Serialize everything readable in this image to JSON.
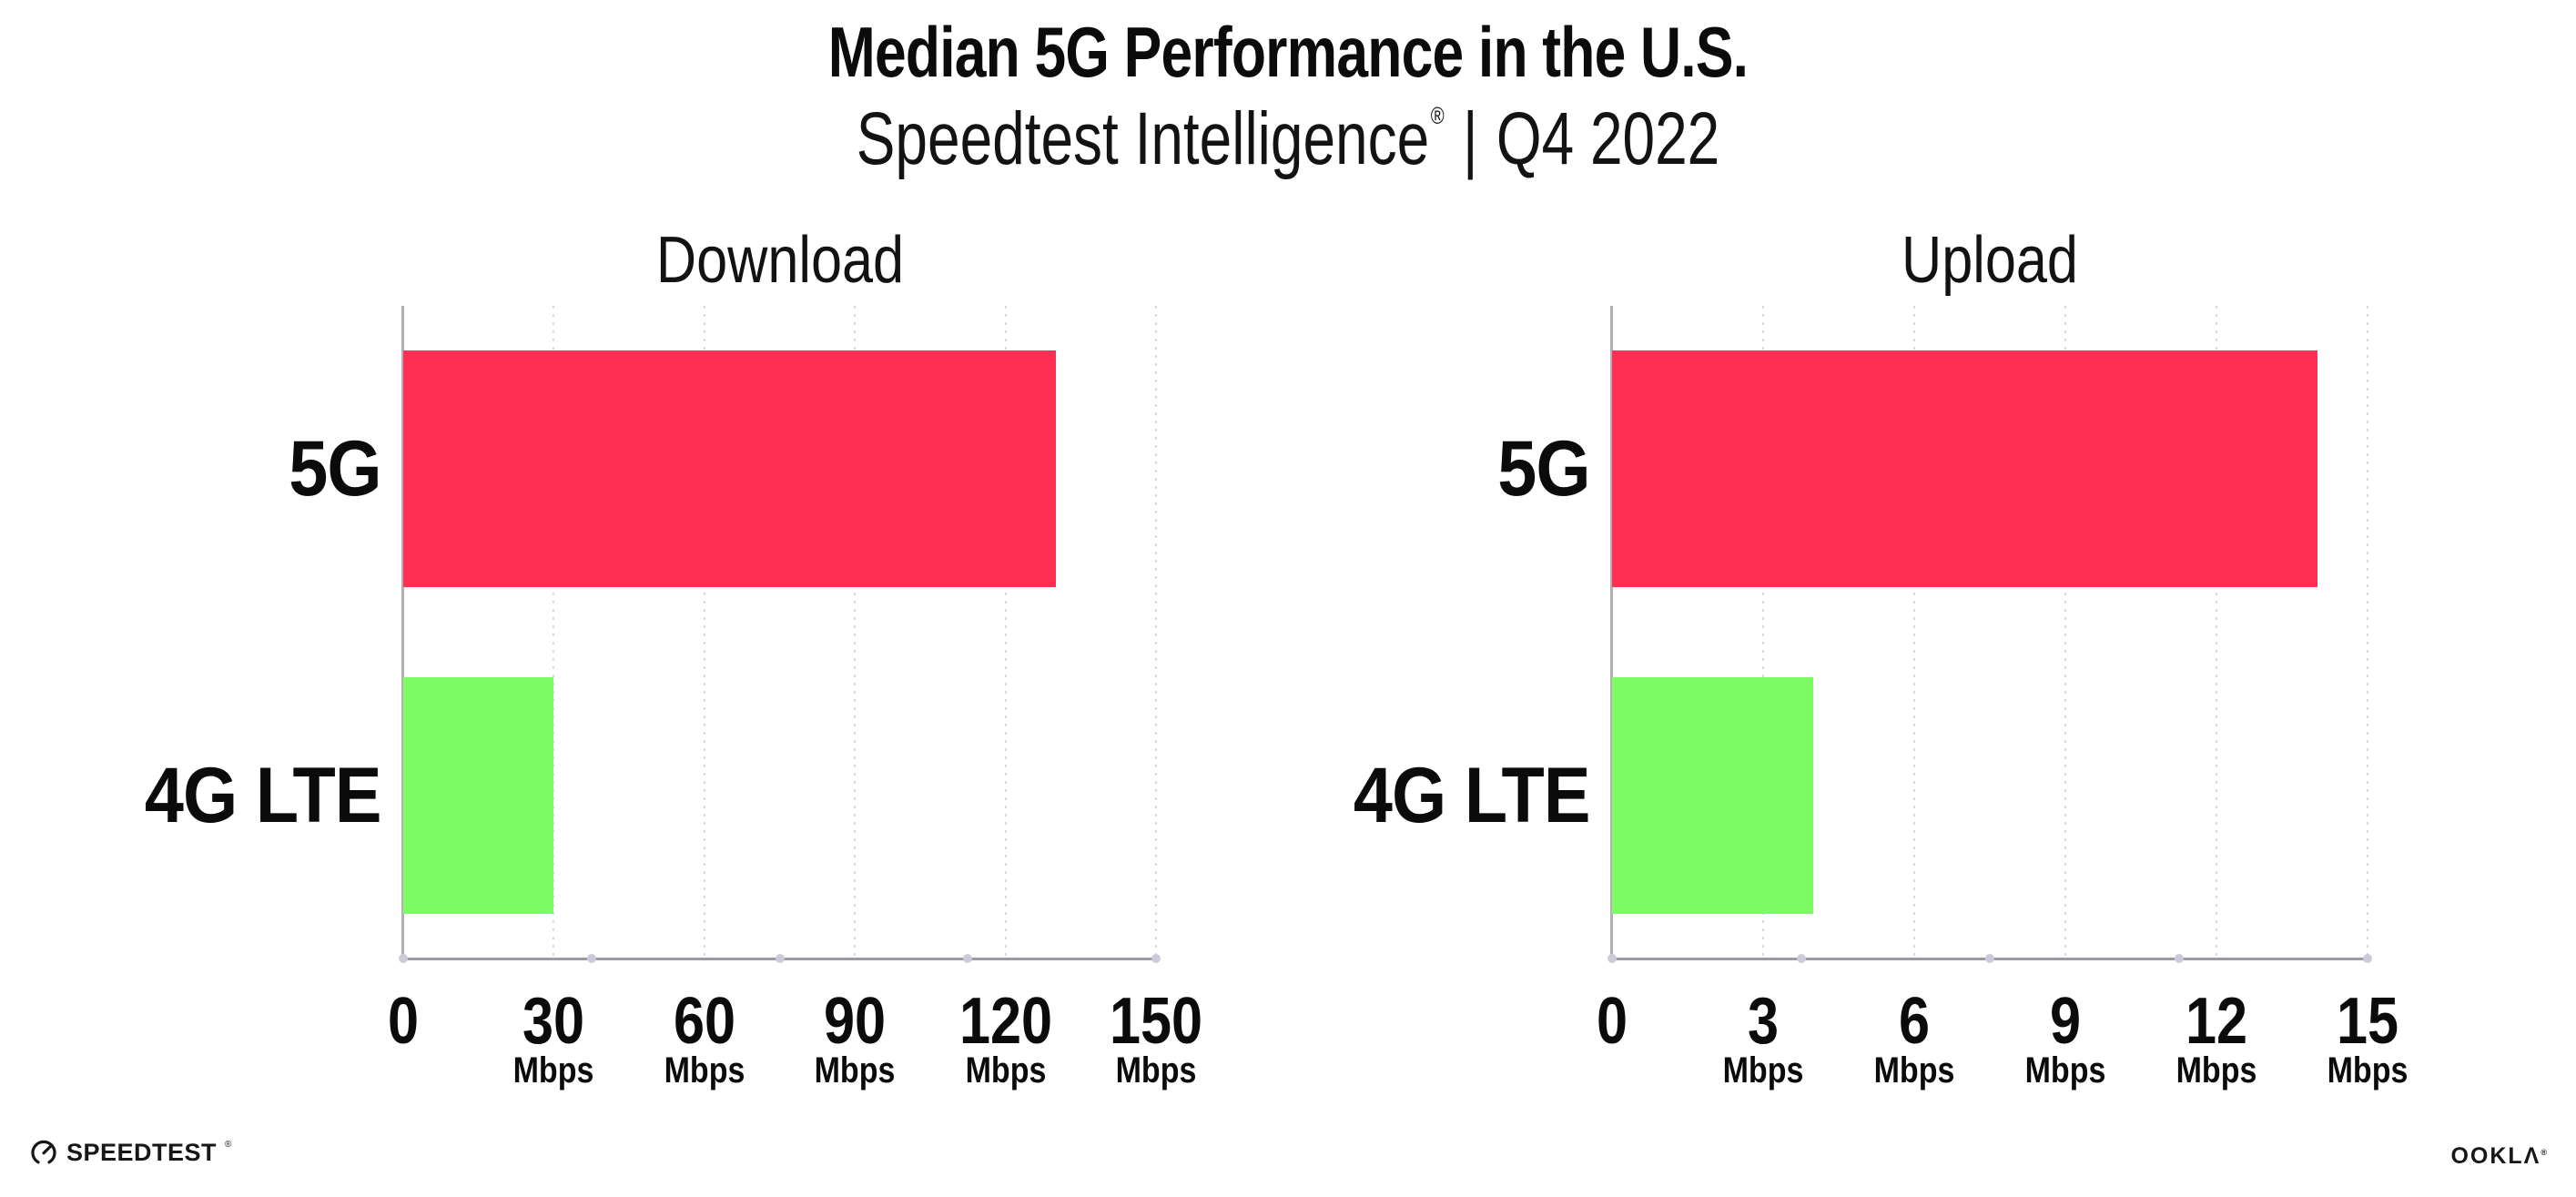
{
  "header": {
    "title": "Median 5G Performance in the U.S.",
    "subtitle_brand": "Speedtest Intelligence",
    "subtitle_reg": "®",
    "subtitle_divider": "|",
    "subtitle_period": "Q4 2022"
  },
  "footer": {
    "speedtest_logo_text": "SPEEDTEST",
    "speedtest_reg": "®",
    "ookla_logo_text": "OOKLΛ",
    "ookla_reg": "®"
  },
  "colors": {
    "bar_5g": "#ff2f54",
    "bar_4g_lte": "#7dfc64",
    "axis_line": "#9b9ba4",
    "gridline": "#d8d8e2",
    "axis_dot": "#ccccd8",
    "text": "#0b0b0c"
  },
  "chart_data": [
    {
      "type": "bar",
      "orientation": "horizontal",
      "title": "Download",
      "categories": [
        "5G",
        "4G LTE"
      ],
      "values": [
        130,
        30
      ],
      "unit": "Mbps",
      "xlim": [
        0,
        150
      ],
      "xticks": [
        0,
        30,
        60,
        90,
        120,
        150
      ],
      "bar_colors": [
        "#ff2f54",
        "#7dfc64"
      ],
      "grid": "vertical-dotted",
      "legend": "none"
    },
    {
      "type": "bar",
      "orientation": "horizontal",
      "title": "Upload",
      "categories": [
        "5G",
        "4G LTE"
      ],
      "values": [
        14,
        4
      ],
      "unit": "Mbps",
      "xlim": [
        0,
        15
      ],
      "xticks": [
        0,
        3,
        6,
        9,
        12,
        15
      ],
      "bar_colors": [
        "#ff2f54",
        "#7dfc64"
      ],
      "grid": "vertical-dotted",
      "legend": "none"
    }
  ]
}
